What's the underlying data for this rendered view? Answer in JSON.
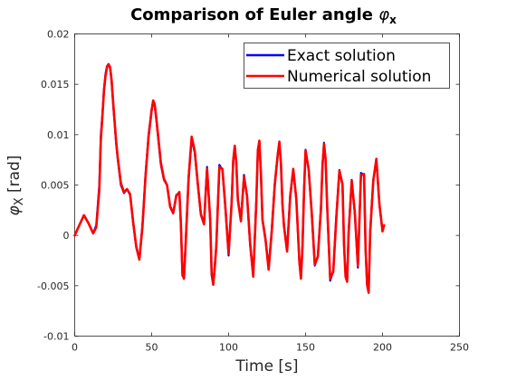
{
  "chart_data": {
    "type": "line",
    "title_main": "Comparison of Euler angle ",
    "title_symbol": "φ",
    "title_subscript": "x",
    "xlabel": "Time [s]",
    "ylabel_symbol": "φ",
    "ylabel_subscript": "X",
    "ylabel_unit": " [rad]",
    "xlim": [
      0,
      250
    ],
    "ylim": [
      -0.01,
      0.02
    ],
    "xticks": [
      0,
      50,
      100,
      150,
      200,
      250
    ],
    "xtick_labels": [
      "0",
      "50",
      "100",
      "150",
      "200",
      "250"
    ],
    "yticks": [
      -0.01,
      -0.005,
      0,
      0.005,
      0.01,
      0.015,
      0.02
    ],
    "ytick_labels": [
      "-0.01",
      "-0.005",
      "0",
      "0.005",
      "0.01",
      "0.015",
      "0.02"
    ],
    "grid": false,
    "legend_position": "top-right",
    "series": [
      {
        "name": "Exact solution",
        "color": "#0000ff",
        "x": [
          0,
          3,
          6,
          9,
          12,
          14,
          16,
          17,
          18,
          19,
          20,
          21,
          22,
          23,
          24,
          25,
          26,
          27,
          28,
          30,
          32,
          34,
          36,
          38,
          40,
          42,
          44,
          46,
          48,
          50,
          51,
          52,
          53,
          54,
          56,
          58,
          60,
          62,
          64,
          66,
          68,
          69,
          70,
          71,
          72,
          74,
          76,
          78,
          80,
          82,
          84,
          86,
          88,
          89,
          90,
          91,
          92,
          94,
          96,
          98,
          100,
          102,
          103,
          104,
          105,
          106,
          108,
          110,
          112,
          114,
          116,
          118,
          119,
          120,
          121,
          122,
          124,
          126,
          128,
          130,
          132,
          133,
          134,
          135,
          136,
          138,
          140,
          142,
          144,
          146,
          147,
          148,
          149,
          150,
          152,
          154,
          156,
          158,
          160,
          161,
          162,
          163,
          164,
          166,
          168,
          170,
          172,
          174,
          175,
          176,
          177,
          178,
          180,
          182,
          184,
          186,
          188,
          189,
          190,
          191,
          192,
          194,
          196,
          198,
          200,
          201
        ],
        "y": [
          0,
          0.001,
          0.002,
          0.0012,
          0.0002,
          0.001,
          0.005,
          0.01,
          0.012,
          0.0145,
          0.016,
          0.0168,
          0.017,
          0.0166,
          0.0152,
          0.013,
          0.011,
          0.009,
          0.0075,
          0.005,
          0.0042,
          0.0046,
          0.004,
          0.0012,
          -0.0012,
          -0.0024,
          0.001,
          0.006,
          0.01,
          0.0125,
          0.0133,
          0.0128,
          0.0115,
          0.01,
          0.007,
          0.0055,
          0.005,
          0.0028,
          0.0022,
          0.004,
          0.0042,
          0.001,
          -0.004,
          -0.0042,
          -0.001,
          0.0058,
          0.0096,
          0.0082,
          0.005,
          0.002,
          0.0012,
          0.0068,
          0.0015,
          -0.004,
          -0.0048,
          -0.003,
          -0.001,
          0.007,
          0.0065,
          0.0025,
          -0.002,
          0.0035,
          0.0075,
          0.0088,
          0.007,
          0.0035,
          0.0015,
          0.006,
          0.0038,
          -0.001,
          -0.004,
          0.0035,
          0.0085,
          0.0093,
          0.006,
          0.0015,
          -0.0005,
          -0.0032,
          0.0005,
          0.0052,
          0.0082,
          0.0092,
          0.007,
          0.003,
          0.001,
          -0.0015,
          0.004,
          0.0065,
          0.0035,
          -0.0028,
          -0.0042,
          -0.001,
          0.0045,
          0.0085,
          0.0065,
          0.0022,
          -0.003,
          -0.002,
          0.0028,
          0.007,
          0.0092,
          0.0075,
          0.003,
          -0.0045,
          -0.0035,
          0.002,
          0.0065,
          0.005,
          -0.001,
          -0.004,
          -0.0045,
          0.0005,
          0.0055,
          0.0022,
          -0.0032,
          0.0062,
          0.006,
          -0.0015,
          -0.005,
          -0.0055,
          0.0005,
          0.0055,
          0.0075,
          0.003,
          0.0005,
          0.001
        ]
      },
      {
        "name": "Numerical solution",
        "color": "#ff0000",
        "x": [
          0,
          3,
          6,
          9,
          12,
          14,
          16,
          17,
          18,
          19,
          20,
          21,
          22,
          23,
          24,
          25,
          26,
          27,
          28,
          30,
          32,
          34,
          36,
          38,
          40,
          42,
          44,
          46,
          48,
          50,
          51,
          52,
          53,
          54,
          56,
          58,
          60,
          62,
          64,
          66,
          68,
          69,
          70,
          71,
          72,
          74,
          76,
          78,
          80,
          82,
          84,
          86,
          88,
          89,
          90,
          91,
          92,
          94,
          96,
          98,
          100,
          102,
          103,
          104,
          105,
          106,
          108,
          110,
          112,
          114,
          116,
          118,
          119,
          120,
          121,
          122,
          124,
          126,
          128,
          130,
          132,
          133,
          134,
          135,
          136,
          138,
          140,
          142,
          144,
          146,
          147,
          148,
          149,
          150,
          152,
          154,
          156,
          158,
          160,
          161,
          162,
          163,
          164,
          166,
          168,
          170,
          172,
          174,
          175,
          176,
          177,
          178,
          180,
          182,
          184,
          186,
          188,
          189,
          190,
          191,
          192,
          194,
          196,
          198,
          200,
          201
        ],
        "y": [
          0,
          0.001,
          0.002,
          0.0012,
          0.0002,
          0.0008,
          0.0045,
          0.0095,
          0.0118,
          0.0143,
          0.0158,
          0.0167,
          0.017,
          0.0167,
          0.0154,
          0.0132,
          0.0112,
          0.0092,
          0.0077,
          0.0052,
          0.0043,
          0.0046,
          0.0041,
          0.0013,
          -0.0011,
          -0.0024,
          0.0008,
          0.0058,
          0.0098,
          0.0124,
          0.0134,
          0.013,
          0.0117,
          0.0102,
          0.0072,
          0.0056,
          0.005,
          0.0029,
          0.0022,
          0.0039,
          0.0043,
          0.0012,
          -0.0038,
          -0.0043,
          -0.0012,
          0.0056,
          0.0098,
          0.0084,
          0.0051,
          0.0021,
          0.0011,
          0.0066,
          0.0017,
          -0.0038,
          -0.0049,
          -0.0032,
          -0.0011,
          0.0068,
          0.0066,
          0.0026,
          -0.0018,
          0.0033,
          0.0074,
          0.0089,
          0.0072,
          0.0036,
          0.0014,
          0.0058,
          0.0039,
          -0.0008,
          -0.0041,
          0.0033,
          0.0084,
          0.0094,
          0.0062,
          0.0016,
          -0.0004,
          -0.0034,
          0.0003,
          0.005,
          0.0081,
          0.0093,
          0.0072,
          0.0031,
          0.0009,
          -0.0016,
          0.0038,
          0.0066,
          0.0036,
          -0.0026,
          -0.0043,
          -0.0012,
          0.0043,
          0.0084,
          0.0066,
          0.0023,
          -0.0029,
          -0.0021,
          0.0026,
          0.0069,
          0.0091,
          0.0076,
          0.0031,
          -0.0043,
          -0.0036,
          0.0018,
          0.0064,
          0.0051,
          -0.0009,
          -0.0041,
          -0.0046,
          0.0003,
          0.0054,
          0.0023,
          -0.003,
          0.006,
          0.0061,
          -0.0013,
          -0.0049,
          -0.0057,
          0.0003,
          0.0054,
          0.0076,
          0.0031,
          0.0004,
          0.001
        ]
      }
    ]
  }
}
